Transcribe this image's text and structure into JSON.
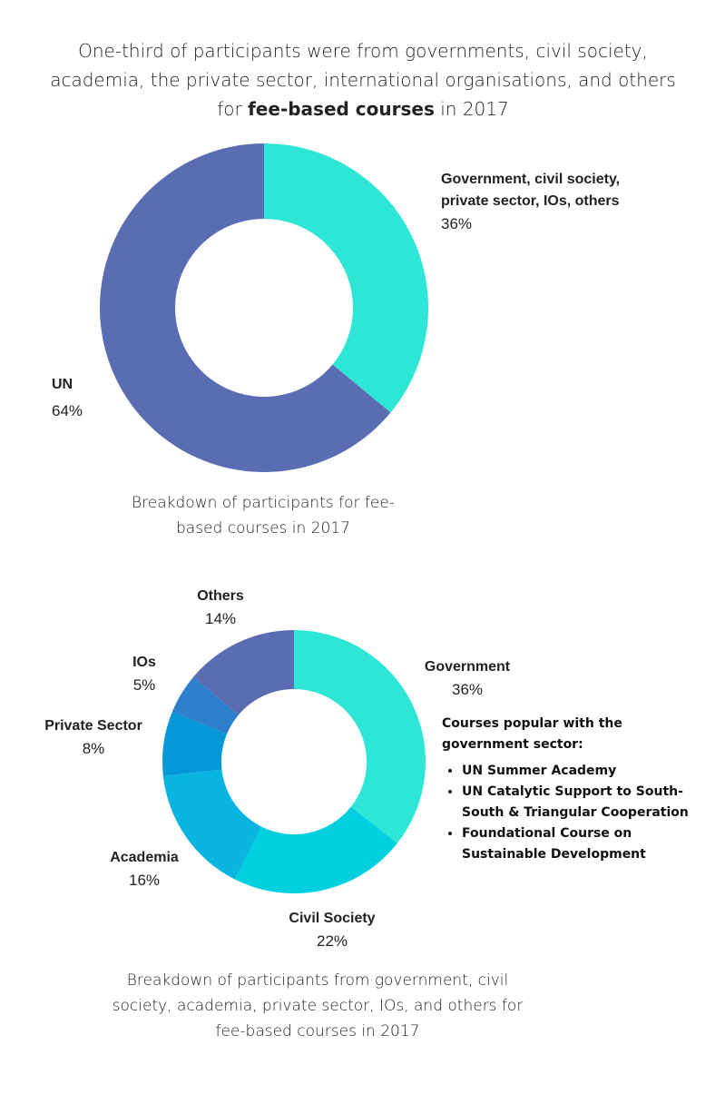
{
  "headline": {
    "line1": "One-third of participants were from governments, civil society,",
    "line2": "academia, the private sector, international organisations, and others",
    "line3_pre": "for ",
    "line3_bold": "fee-based courses",
    "line3_post": " in 2017"
  },
  "chart_data": [
    {
      "type": "pie",
      "donut": true,
      "slices": [
        {
          "label_line1": "Government, civil society,",
          "label_line2": "private sector, IOs, others",
          "value": 36,
          "pct_label": "36%",
          "color": "#2ee6d6"
        },
        {
          "label_line1": "UN",
          "value": 64,
          "pct_label": "64%",
          "color": "#5a6db3"
        }
      ],
      "caption_line1": "Breakdown of participants for fee-",
      "caption_line2": "based courses in 2017"
    },
    {
      "type": "pie",
      "donut": true,
      "slices": [
        {
          "label": "Government",
          "value": 36,
          "pct_label": "36%",
          "color": "#2ee6d6"
        },
        {
          "label": "Civil Society",
          "value": 22,
          "pct_label": "22%",
          "color": "#00cfe0"
        },
        {
          "label": "Academia",
          "value": 16,
          "pct_label": "16%",
          "color": "#07b5e0"
        },
        {
          "label": "Private Sector",
          "value": 8,
          "pct_label": "8%",
          "color": "#0598d8"
        },
        {
          "label": "IOs",
          "value": 5,
          "pct_label": "5%",
          "color": "#2e7fcc"
        },
        {
          "label": "Others",
          "value": 14,
          "pct_label": "14%",
          "color": "#5a6db3"
        }
      ],
      "caption_line1": "Breakdown of participants from government, civil",
      "caption_line2": "society, academia, private sector, IOs, and others for",
      "caption_line3": "fee-based courses in 2017"
    }
  ],
  "popular": {
    "title_line1": "Courses popular with the",
    "title_line2": "government sector:",
    "items": [
      {
        "line1": "UN Summer Academy",
        "line2": ""
      },
      {
        "line1": "UN Catalytic Support to South-",
        "line2": "South & Triangular Cooperation"
      },
      {
        "line1": "Foundational Course on",
        "line2": "Sustainable Development"
      }
    ]
  }
}
